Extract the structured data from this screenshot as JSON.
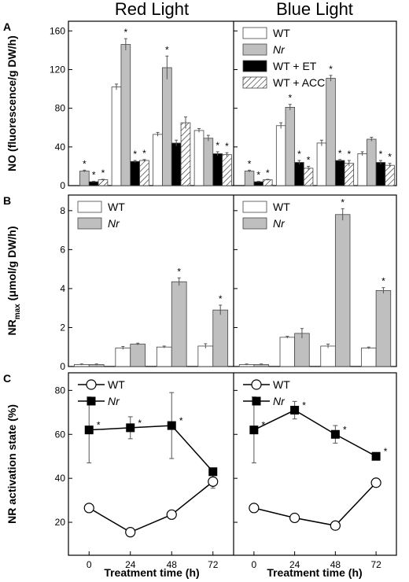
{
  "chart_data": {
    "type": "bar",
    "column_titles": [
      "Red Light",
      "Blue Light"
    ],
    "x_label": "Treatment time (h)",
    "x_ticks": [
      "0",
      "24",
      "48",
      "72"
    ],
    "colors": {
      "WT": "#ffffff",
      "Nr": "#bfbfbf",
      "WT + ET": "#000000",
      "WT + ACC": "hatch"
    },
    "panels": [
      {
        "letter": "A",
        "ylabel": "NO (fluorescence/g DW/h)",
        "ylim": [
          0,
          170
        ],
        "yticks": [
          "0",
          "40",
          "80",
          "120",
          "160"
        ],
        "legend": [
          "WT",
          "Nr",
          "WT + ET",
          "WT + ACC"
        ],
        "red": {
          "series": [
            {
              "name": "WT",
              "values": [
                0,
                102,
                53,
                57
              ],
              "err": [
                0,
                3,
                2,
                2
              ],
              "star": [
                false,
                false,
                false,
                false
              ]
            },
            {
              "name": "Nr",
              "values": [
                15,
                146,
                122,
                49
              ],
              "err": [
                1,
                6,
                12,
                3
              ],
              "star": [
                true,
                true,
                true,
                false
              ]
            },
            {
              "name": "WT + ET",
              "values": [
                4,
                25,
                44,
                33
              ],
              "err": [
                0.5,
                1,
                3,
                2
              ],
              "star": [
                true,
                true,
                false,
                true
              ]
            },
            {
              "name": "WT + ACC",
              "values": [
                6,
                26,
                65,
                32
              ],
              "err": [
                0.5,
                1,
                6,
                2
              ],
              "star": [
                true,
                true,
                false,
                true
              ]
            }
          ]
        },
        "blue": {
          "series": [
            {
              "name": "WT",
              "values": [
                0,
                62,
                44,
                33
              ],
              "err": [
                0,
                3,
                3,
                2
              ],
              "star": [
                false,
                false,
                false,
                false
              ]
            },
            {
              "name": "Nr",
              "values": [
                15,
                81,
                111,
                48
              ],
              "err": [
                1,
                3,
                3,
                2
              ],
              "star": [
                true,
                true,
                true,
                false
              ]
            },
            {
              "name": "WT + ET",
              "values": [
                4,
                24,
                26,
                24
              ],
              "err": [
                0.5,
                2,
                1,
                2
              ],
              "star": [
                true,
                true,
                true,
                true
              ]
            },
            {
              "name": "WT + ACC",
              "values": [
                6,
                18,
                23,
                21
              ],
              "err": [
                0.5,
                2,
                3,
                2
              ],
              "star": [
                true,
                true,
                true,
                true
              ]
            }
          ]
        }
      },
      {
        "letter": "B",
        "ylabel": "NR",
        "ylabel_sub": "max",
        "ylabel_units": "(μmol/g DW/h)",
        "ylim": [
          0,
          8.8
        ],
        "yticks": [
          "0",
          "2",
          "4",
          "6",
          "8"
        ],
        "legend": [
          "WT",
          "Nr"
        ],
        "red": {
          "series": [
            {
              "name": "WT",
              "values": [
                0.1,
                0.95,
                1.0,
                1.05
              ],
              "err": [
                0.03,
                0.08,
                0.05,
                0.12
              ],
              "star": [
                false,
                false,
                false,
                false
              ]
            },
            {
              "name": "Nr",
              "values": [
                0.1,
                1.15,
                4.35,
                2.9
              ],
              "err": [
                0.03,
                0.05,
                0.2,
                0.25
              ],
              "star": [
                false,
                false,
                true,
                true
              ]
            }
          ]
        },
        "blue": {
          "series": [
            {
              "name": "WT",
              "values": [
                0.1,
                1.5,
                1.05,
                0.95
              ],
              "err": [
                0.03,
                0.05,
                0.1,
                0.05
              ],
              "star": [
                false,
                false,
                false,
                false
              ]
            },
            {
              "name": "Nr",
              "values": [
                0.1,
                1.7,
                7.8,
                3.9
              ],
              "err": [
                0.03,
                0.25,
                0.3,
                0.15
              ],
              "star": [
                false,
                false,
                true,
                true
              ]
            }
          ]
        }
      },
      {
        "letter": "C",
        "type": "line",
        "ylabel": "NR activation state (%)",
        "ylim": [
          5,
          88
        ],
        "yticks": [
          "20",
          "40",
          "60",
          "80"
        ],
        "legend": [
          "WT",
          "Nr"
        ],
        "red": {
          "series": [
            {
              "name": "WT",
              "values": [
                26.5,
                15.5,
                23.5,
                38.5
              ],
              "err": [
                1.5,
                1.5,
                2,
                3
              ],
              "star": [
                false,
                false,
                false,
                false
              ]
            },
            {
              "name": "Nr",
              "values": [
                62,
                63,
                64,
                43
              ],
              "err": [
                15,
                5,
                15,
                1.5
              ],
              "star": [
                true,
                true,
                true,
                false
              ]
            }
          ]
        },
        "blue": {
          "series": [
            {
              "name": "WT",
              "values": [
                26.5,
                22,
                18.5,
                38
              ],
              "err": [
                1,
                1,
                1,
                1.5
              ],
              "star": [
                false,
                false,
                false,
                false
              ]
            },
            {
              "name": "Nr",
              "values": [
                62,
                71,
                60,
                50
              ],
              "err": [
                15,
                4,
                4,
                1
              ],
              "star": [
                true,
                true,
                true,
                true
              ]
            }
          ]
        }
      }
    ]
  }
}
